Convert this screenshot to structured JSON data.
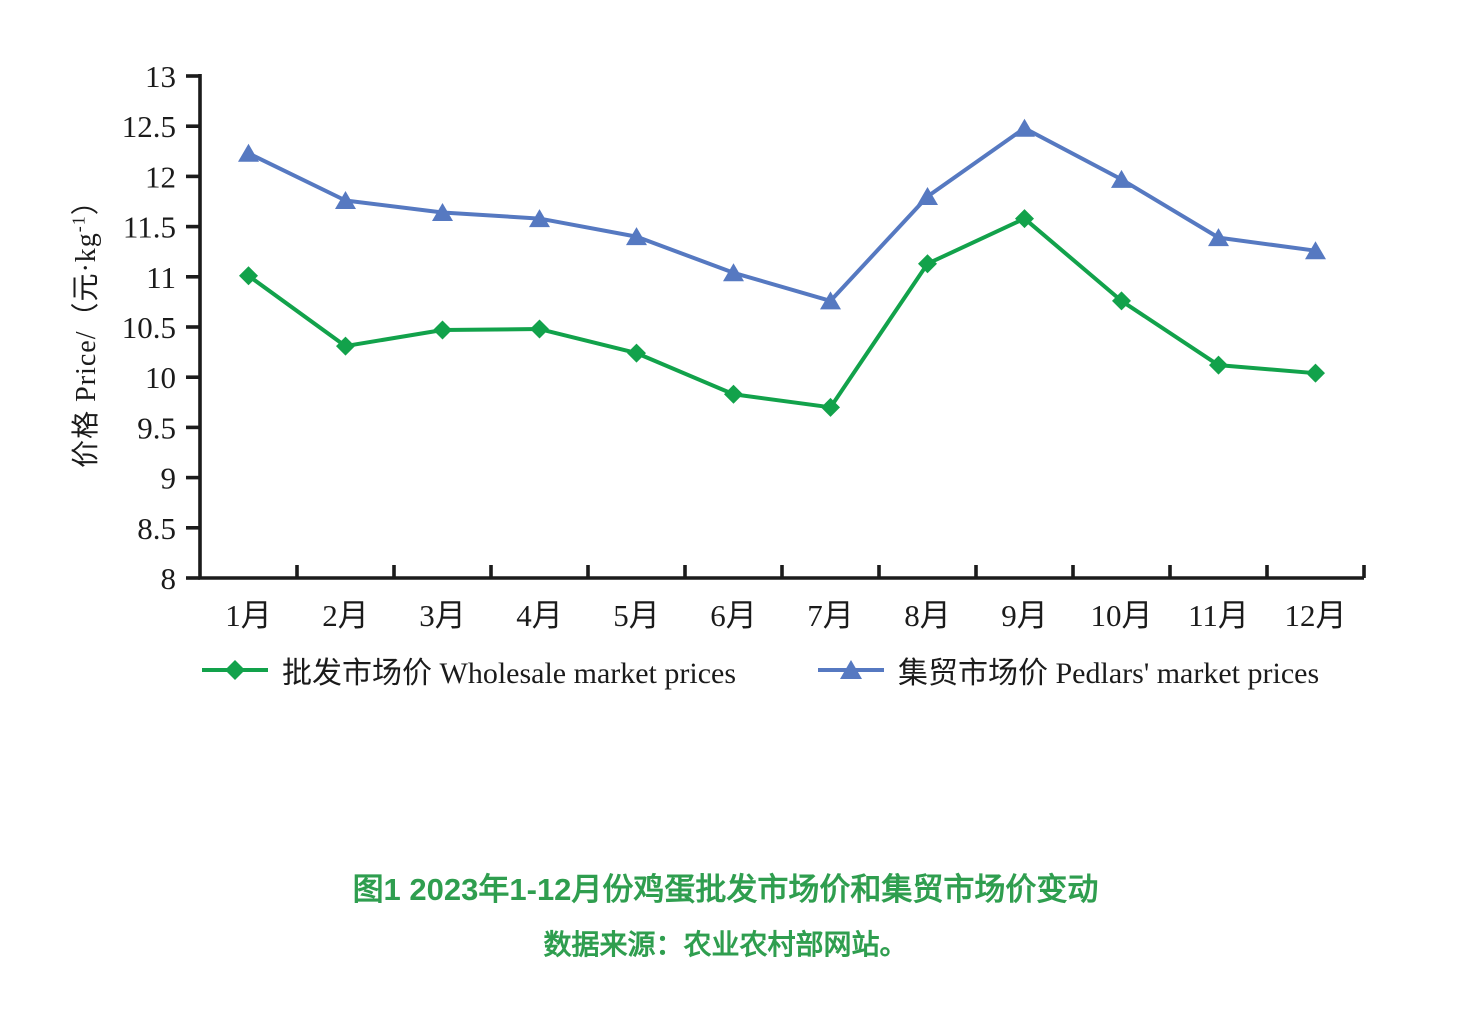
{
  "figure": {
    "caption_title": "图1 2023年1-12月份鸡蛋批发市场价和集贸市场价变动",
    "caption_source": "数据来源：农业农村部网站。",
    "caption_color": "#2F9E4F"
  },
  "chart_data": {
    "type": "line",
    "title": "图1 2023年1-12月份鸡蛋批发市场价和集贸市场价变动",
    "source_note": "数据来源：农业农村部网站。",
    "xlabel": "",
    "ylabel": {
      "prefix": "价格 Price/（元·kg",
      "sup": "-1",
      "suffix": "）"
    },
    "categories": [
      "1月",
      "2月",
      "3月",
      "4月",
      "5月",
      "6月",
      "7月",
      "8月",
      "9月",
      "10月",
      "11月",
      "12月"
    ],
    "y_ticks": [
      13,
      12.5,
      12,
      11.5,
      11,
      10.5,
      10,
      9.5,
      9,
      8.5,
      8
    ],
    "ylim": [
      8,
      13
    ],
    "grid": false,
    "legend_position": "bottom",
    "axis_color": "#1b1b1b",
    "text_color": "#1b1b1b",
    "series": [
      {
        "name": "批发市场价  Wholesale market prices",
        "marker": "diamond",
        "color": "#12A24B",
        "values": [
          11.01,
          10.31,
          10.47,
          10.48,
          10.24,
          9.83,
          9.7,
          11.13,
          11.58,
          10.76,
          10.12,
          10.04
        ]
      },
      {
        "name": "集贸市场价  Pedlars' market prices",
        "marker": "triangle",
        "color": "#5679C1",
        "values": [
          12.23,
          11.76,
          11.64,
          11.58,
          11.4,
          11.04,
          10.76,
          11.8,
          12.48,
          11.97,
          11.39,
          11.26
        ]
      }
    ]
  }
}
